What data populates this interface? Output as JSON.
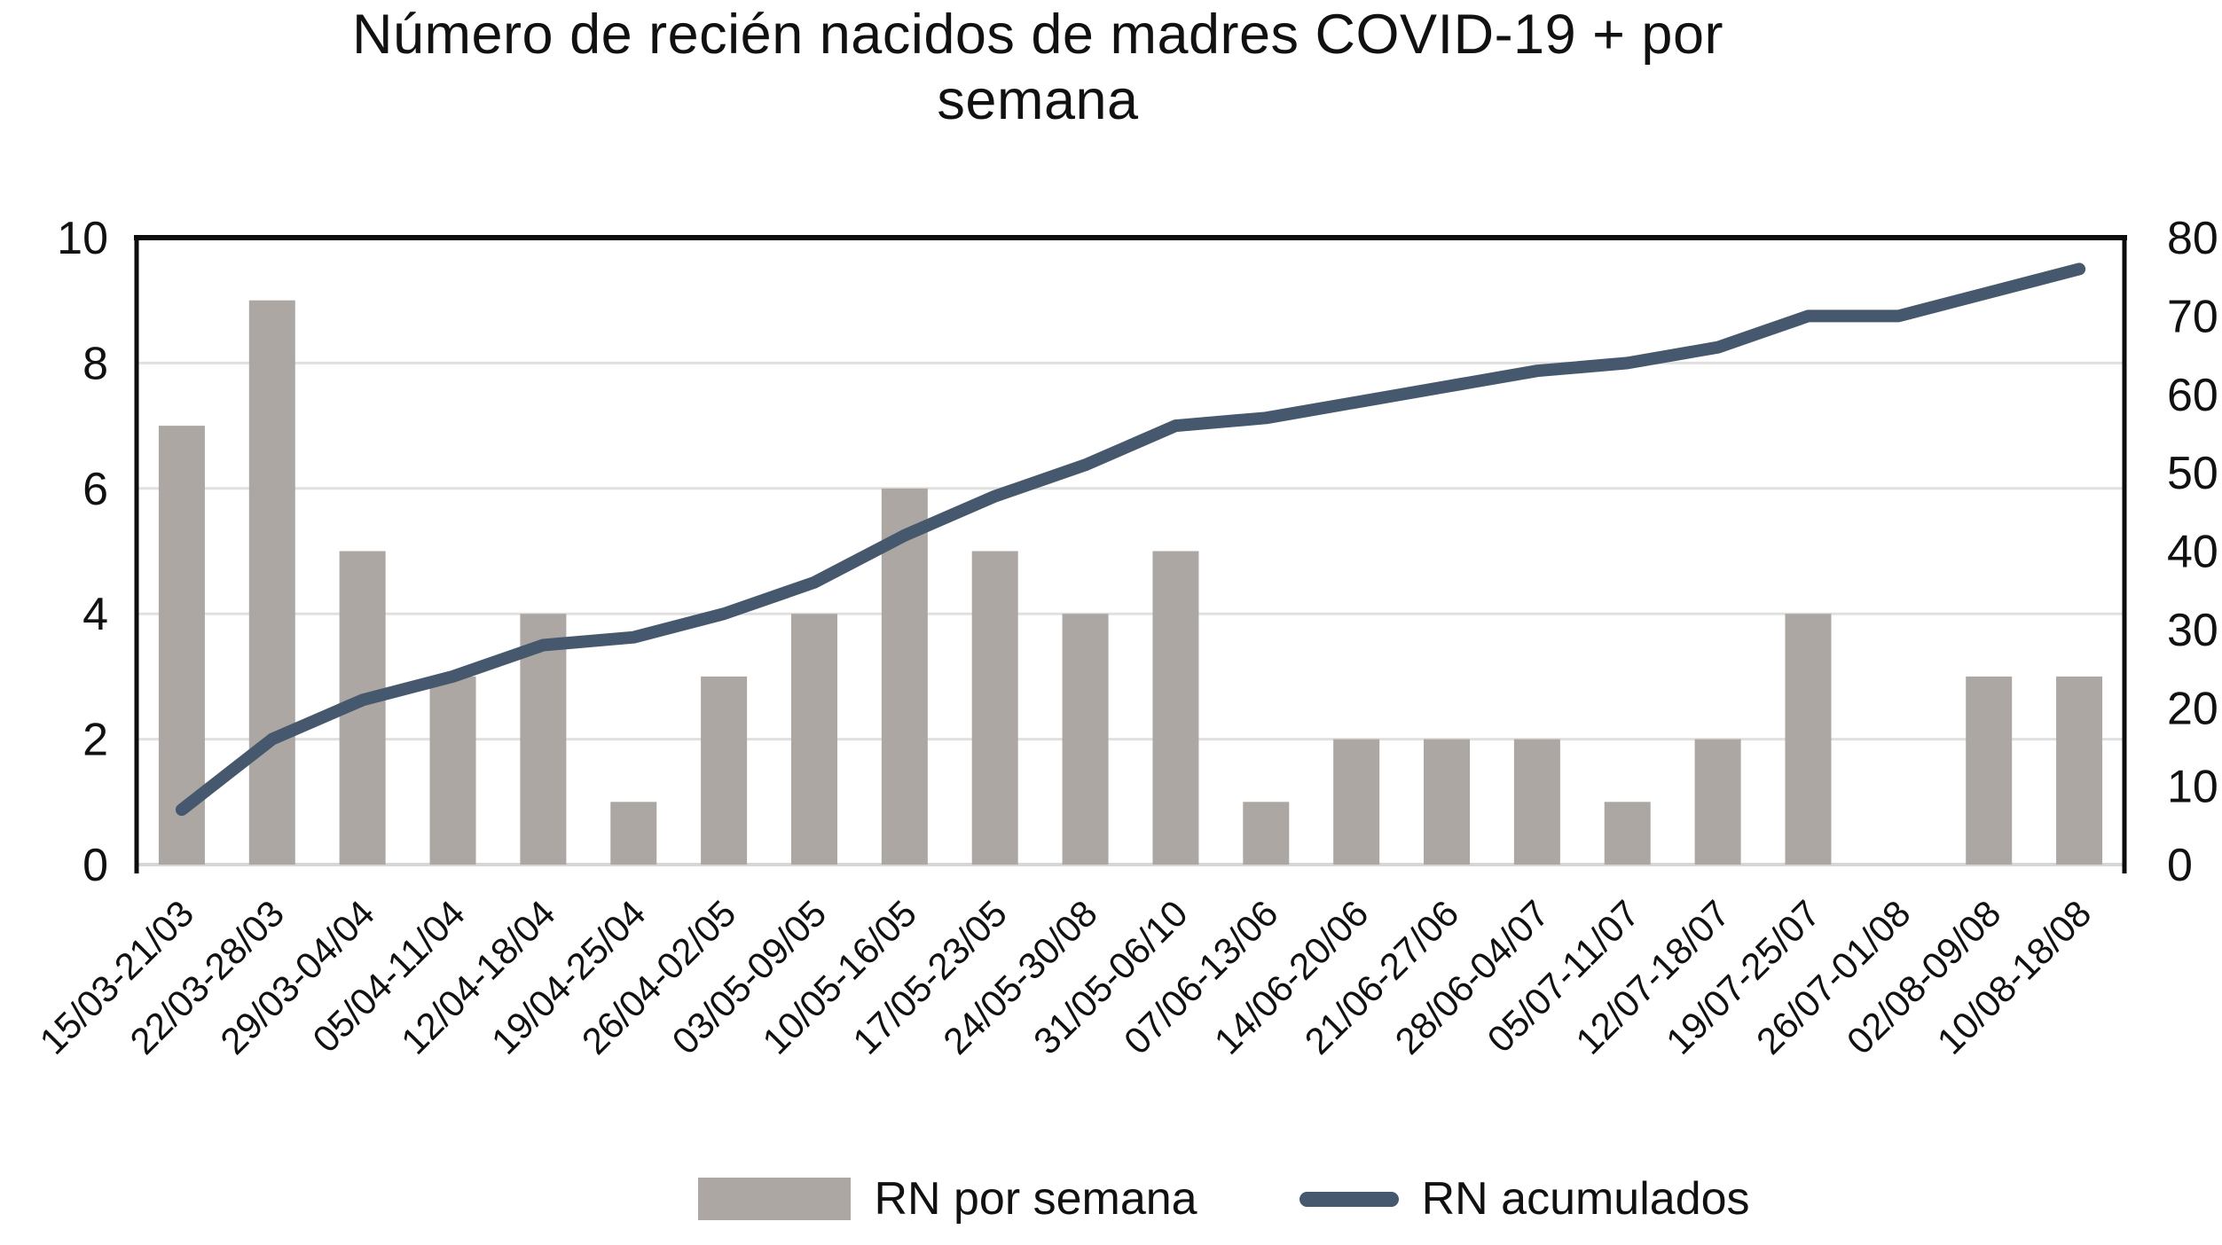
{
  "title": "Número de recién nacidos de madres COVID-19 + por semana",
  "title_lines": [
    "Número de recién nacidos de madres COVID-19 + por",
    "semana"
  ],
  "legend": {
    "bars_label": "RN por semana",
    "line_label": "RN acumulados"
  },
  "colors": {
    "bar": "#aca7a3",
    "line": "#46586e",
    "grid": "#e0e0e0",
    "baseline": "#d6d6d6",
    "frame": "#0d0d0d",
    "text": "#111111",
    "background": "#ffffff"
  },
  "chart_data": {
    "type": "bar",
    "subtype": "combo-bar-line-dual-axis",
    "title": "Número de recién nacidos de madres COVID-19 + por semana",
    "categories": [
      "15/03-21/03",
      "22/03-28/03",
      "29/03-04/04",
      "05/04-11/04",
      "12/04-18/04",
      "19/04-25/04",
      "26/04-02/05",
      "03/05-09/05",
      "10/05-16/05",
      "17/05-23/05",
      "24/05-30/08",
      "31/05-06/10",
      "07/06-13/06",
      "14/06-20/06",
      "21/06-27/06",
      "28/06-04/07",
      "05/07-11/07",
      "12/07-18/07",
      "19/07-25/07",
      "26/07-01/08",
      "02/08-09/08",
      "10/08-18/08"
    ],
    "series": [
      {
        "name": "RN por semana",
        "type": "bar",
        "axis": "left",
        "values": [
          7,
          9,
          5,
          3,
          4,
          1,
          3,
          4,
          6,
          5,
          4,
          5,
          1,
          2,
          2,
          2,
          1,
          2,
          4,
          0,
          3,
          3
        ]
      },
      {
        "name": "RN acumulados",
        "type": "line",
        "axis": "right",
        "values": [
          7,
          16,
          21,
          24,
          28,
          29,
          32,
          36,
          42,
          47,
          51,
          56,
          57,
          59,
          61,
          63,
          64,
          66,
          70,
          70,
          73,
          76
        ]
      }
    ],
    "left_axis": {
      "min": 0,
      "max": 10,
      "step": 2,
      "ticks": [
        "0",
        "2",
        "4",
        "6",
        "8",
        "10"
      ]
    },
    "right_axis": {
      "min": 0,
      "max": 80,
      "step": 10,
      "ticks": [
        "0",
        "10",
        "20",
        "30",
        "40",
        "50",
        "60",
        "70",
        "80"
      ]
    },
    "grid": true,
    "legend_position": "bottom",
    "xlabel": "",
    "ylabel_left": "",
    "ylabel_right": ""
  }
}
